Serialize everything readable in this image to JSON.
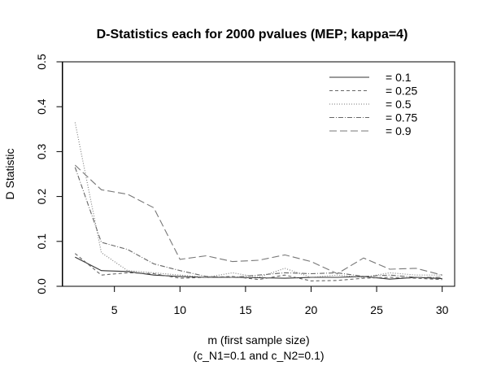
{
  "chart_data": {
    "type": "line",
    "title": "D-Statistics each for 2000 pvalues (MEP; kappa=4)",
    "xlabel": "m (first sample size)",
    "xlabel2": "(c_N1=0.1 and c_N2=0.1)",
    "ylabel": "D Statistic",
    "xlim": [
      1.05,
      30.95
    ],
    "ylim": [
      0,
      0.5
    ],
    "xticks": [
      5,
      10,
      15,
      20,
      25,
      30
    ],
    "yticks": [
      0.0,
      0.1,
      0.2,
      0.3,
      0.4,
      0.5
    ],
    "grid": false,
    "legend_position": "top-right",
    "x": [
      2,
      4,
      6,
      8,
      10,
      12,
      14,
      16,
      18,
      20,
      22,
      24,
      26,
      28,
      30
    ],
    "series": [
      {
        "name": "= 0.1",
        "dash": "",
        "color": "#333333",
        "values": [
          0.065,
          0.035,
          0.033,
          0.025,
          0.022,
          0.02,
          0.02,
          0.019,
          0.018,
          0.02,
          0.02,
          0.022,
          0.016,
          0.02,
          0.017
        ]
      },
      {
        "name": "= 0.25",
        "dash": "4,3",
        "color": "#666666",
        "values": [
          0.073,
          0.025,
          0.03,
          0.028,
          0.018,
          0.02,
          0.022,
          0.015,
          0.025,
          0.012,
          0.013,
          0.018,
          0.02,
          0.018,
          0.015
        ]
      },
      {
        "name": "= 0.5",
        "dash": "1,2",
        "color": "#777777",
        "values": [
          0.365,
          0.075,
          0.035,
          0.03,
          0.025,
          0.02,
          0.03,
          0.02,
          0.04,
          0.02,
          0.025,
          0.02,
          0.03,
          0.025,
          0.025
        ]
      },
      {
        "name": "= 0.75",
        "dash": "6,2,1,2",
        "color": "#666666",
        "values": [
          0.265,
          0.098,
          0.082,
          0.05,
          0.035,
          0.022,
          0.02,
          0.025,
          0.03,
          0.028,
          0.03,
          0.022,
          0.025,
          0.02,
          0.02
        ]
      },
      {
        "name": "= 0.9",
        "dash": "9,4",
        "color": "#777777",
        "values": [
          0.27,
          0.215,
          0.205,
          0.175,
          0.06,
          0.068,
          0.055,
          0.058,
          0.07,
          0.055,
          0.028,
          0.063,
          0.038,
          0.04,
          0.025
        ]
      }
    ]
  }
}
